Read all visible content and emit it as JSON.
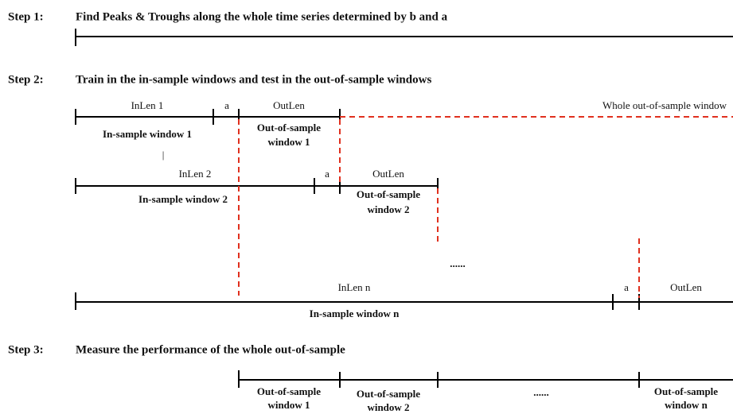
{
  "steps": [
    {
      "label": "Step 1:",
      "text": "Find Peaks & Troughs along the whole time series determined by b and a"
    },
    {
      "label": "Step 2:",
      "text": "Train in the in-sample windows and test in the out-of-sample windows"
    },
    {
      "label": "Step 3:",
      "text": "Measure the performance of the whole out-of-sample"
    }
  ],
  "windows": [
    {
      "in_len": "InLen 1",
      "gap": "a",
      "out_len": "OutLen",
      "in_sample": "In-sample window 1",
      "out_sample": [
        "Out-of-sample",
        "window 1"
      ]
    },
    {
      "in_len": "InLen 2",
      "gap": "a",
      "out_len": "OutLen",
      "in_sample": "In-sample window 2",
      "out_sample": [
        "Out-of-sample",
        "window 2"
      ]
    },
    {
      "in_len": "InLen n",
      "gap": "a",
      "out_len": "OutLen",
      "in_sample": "In-sample window n"
    }
  ],
  "separator": "|",
  "whole_out_of_sample": "Whole out-of-sample window",
  "ellipsis": "......",
  "performance": {
    "windows": [
      [
        "Out-of-sample",
        "window 1"
      ],
      [
        "Out-of-sample",
        "window 2"
      ],
      [
        "Out-of-sample",
        "window n"
      ]
    ],
    "ellipsis": "......"
  }
}
